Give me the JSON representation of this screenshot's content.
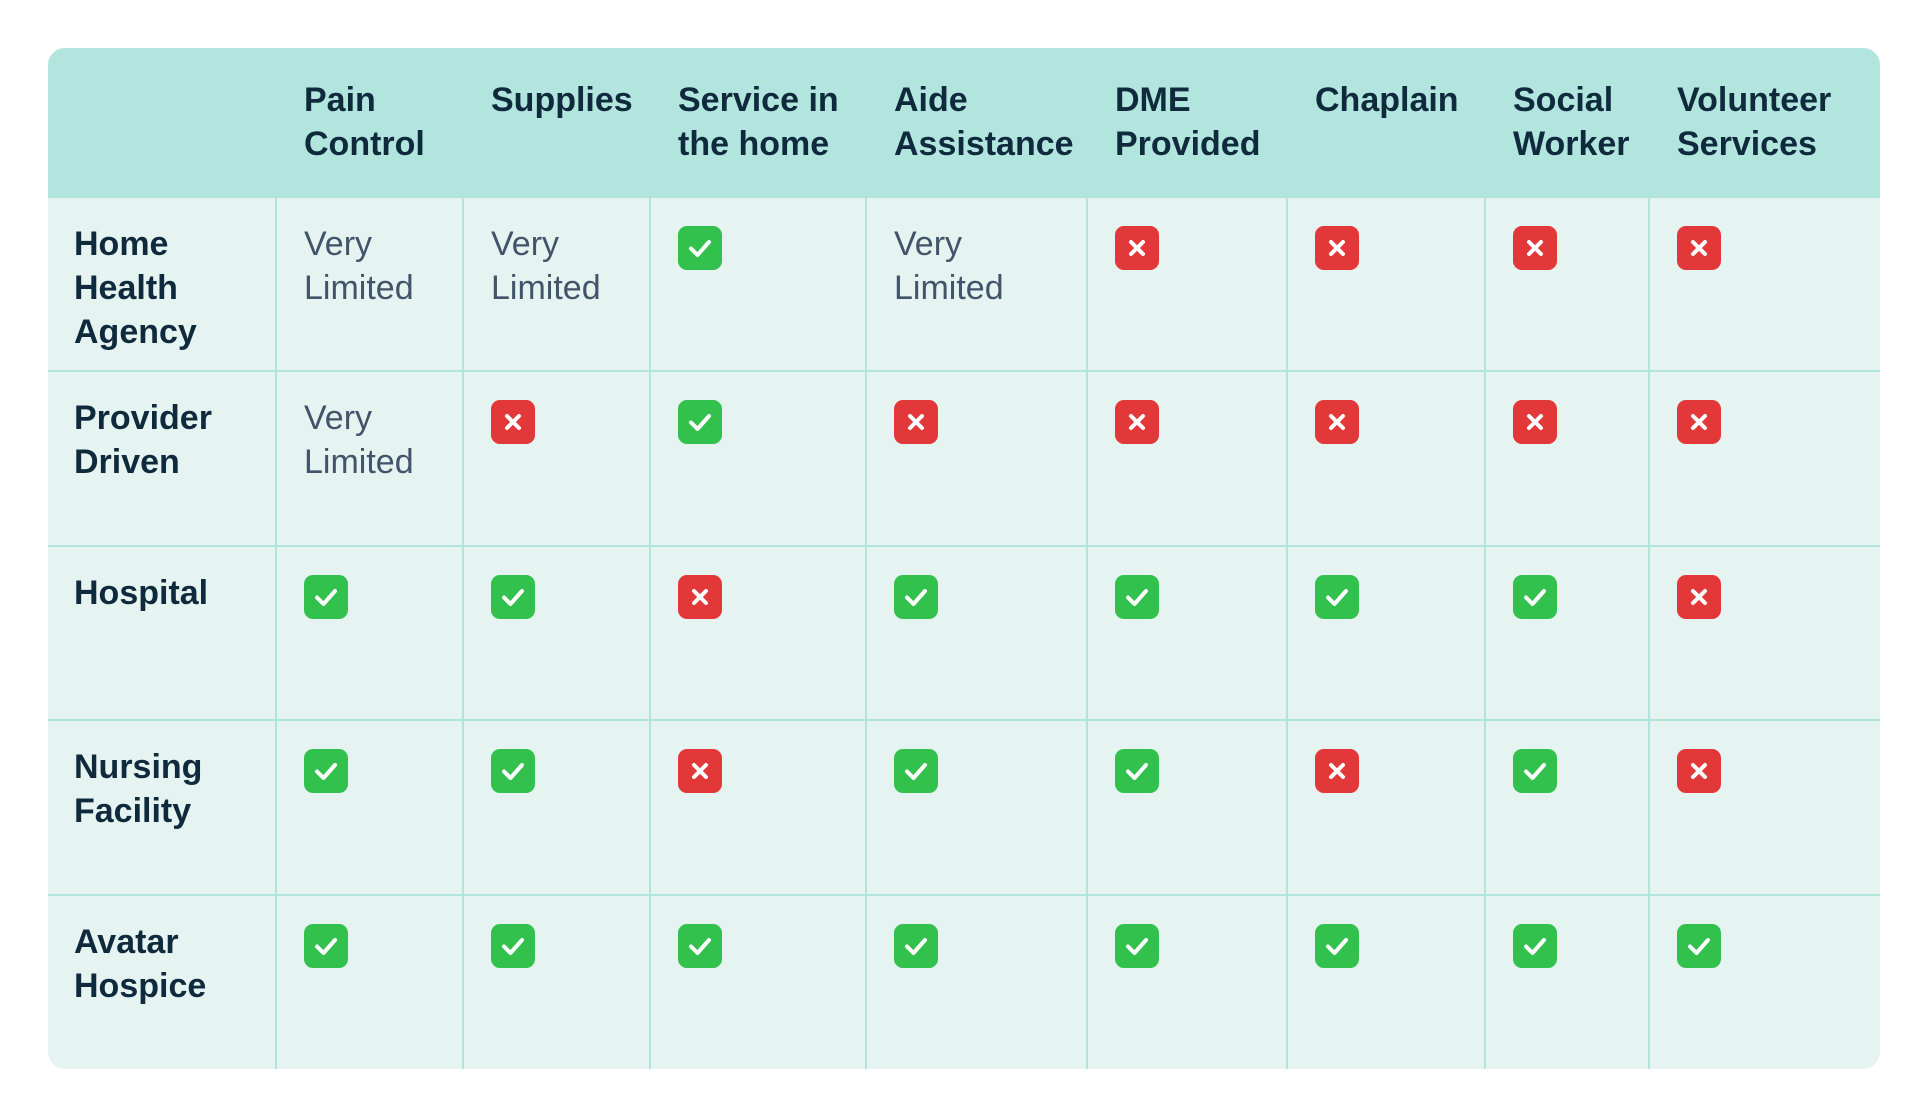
{
  "columns": [
    "",
    "Pain Control",
    "Supplies",
    "Service in the home",
    "Aide Assistance",
    "DME Provided",
    "Chaplain",
    "Social Worker",
    "Volunteer Services"
  ],
  "column_lines": [
    [
      ""
    ],
    [
      "Pain",
      "Control"
    ],
    [
      "Supplies"
    ],
    [
      "Service in",
      "the home"
    ],
    [
      "Aide",
      "Assistance"
    ],
    [
      "DME",
      "Provided"
    ],
    [
      "Chaplain"
    ],
    [
      "Social",
      "Worker"
    ],
    [
      "Volunteer",
      "Services"
    ]
  ],
  "rows": [
    {
      "label": "Home Health Agency",
      "label_lines": [
        "Home",
        "Health",
        "Agency"
      ],
      "cells": [
        "Very Limited",
        "Very Limited",
        "yes",
        "Very Limited",
        "no",
        "no",
        "no",
        "no"
      ]
    },
    {
      "label": "Provider Driven",
      "label_lines": [
        "Provider",
        "Driven"
      ],
      "cells": [
        "Very Limited",
        "no",
        "yes",
        "no",
        "no",
        "no",
        "no",
        "no"
      ]
    },
    {
      "label": "Hospital",
      "label_lines": [
        "Hospital"
      ],
      "cells": [
        "yes",
        "yes",
        "no",
        "yes",
        "yes",
        "yes",
        "yes",
        "no"
      ]
    },
    {
      "label": "Nursing Facility",
      "label_lines": [
        "Nursing",
        "Facility"
      ],
      "cells": [
        "yes",
        "yes",
        "no",
        "yes",
        "yes",
        "no",
        "yes",
        "no"
      ]
    },
    {
      "label": "Avatar Hospice",
      "label_lines": [
        "Avatar",
        "Hospice"
      ],
      "cells": [
        "yes",
        "yes",
        "yes",
        "yes",
        "yes",
        "yes",
        "yes",
        "yes"
      ]
    }
  ],
  "icons": {
    "yes": "check-icon",
    "no": "cross-icon"
  },
  "colors": {
    "header_bg": "#b2e5dd",
    "body_bg": "#e6f4f1",
    "check": "#33c14d",
    "cross": "#e2383a",
    "text_dark": "#0f2a3d",
    "text_muted": "#41546a"
  }
}
